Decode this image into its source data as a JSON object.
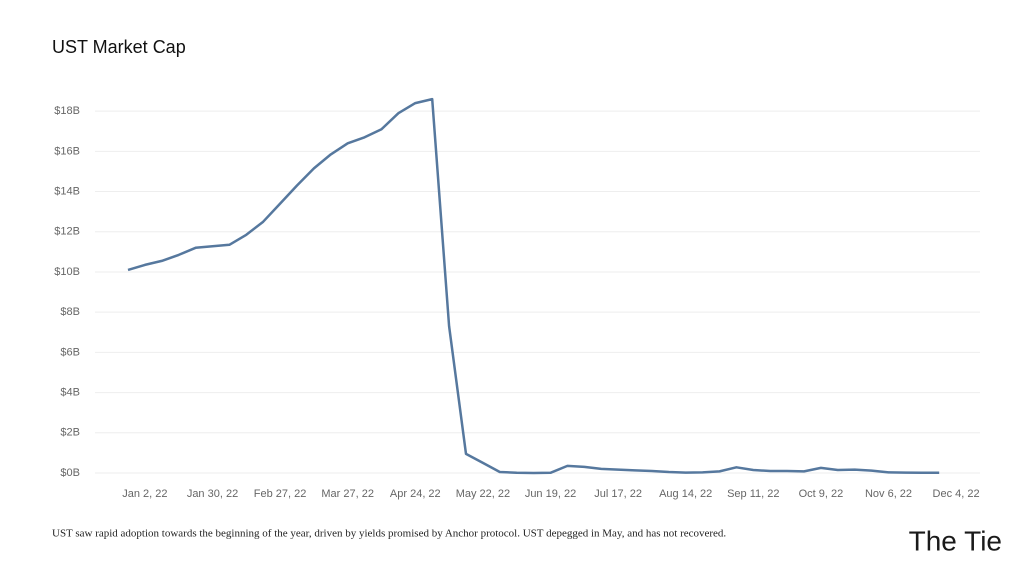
{
  "chart_data": {
    "type": "line",
    "title": "UST Market Cap",
    "caption": "UST saw rapid adoption towards the beginning of the year, driven by yields promised by Anchor protocol. UST depegged in May, and has not recovered.",
    "brand": "The Tie",
    "categories": [
      null,
      "Jan 2, 22",
      null,
      null,
      null,
      "Jan 30, 22",
      null,
      null,
      null,
      "Feb 27, 22",
      null,
      null,
      null,
      "Mar 27, 22",
      null,
      null,
      null,
      "Apr 24, 22",
      null,
      null,
      null,
      "May 22, 22",
      null,
      null,
      null,
      "Jun 19, 22",
      null,
      null,
      null,
      "Jul 17, 22",
      null,
      null,
      null,
      "Aug 14, 22",
      null,
      null,
      null,
      "Sep 11, 22",
      null,
      null,
      null,
      "Oct 9, 22",
      null,
      null,
      null,
      "Nov 6, 22",
      null,
      null,
      null,
      "Dec 4, 22"
    ],
    "series": [
      {
        "name": "UST Market Cap",
        "color": "#56789e",
        "values": [
          10.1,
          10.35,
          10.55,
          10.85,
          11.2,
          11.28,
          11.35,
          11.85,
          12.5,
          13.4,
          14.3,
          15.15,
          15.85,
          16.4,
          16.7,
          17.1,
          17.9,
          18.4,
          18.6,
          7.3,
          0.95,
          0.5,
          0.05,
          0.01,
          0.0,
          0.01,
          0.35,
          0.3,
          0.2,
          0.17,
          0.13,
          0.1,
          0.05,
          0.02,
          0.03,
          0.08,
          0.28,
          0.15,
          0.1,
          0.1,
          0.08,
          0.25,
          0.15,
          0.17,
          0.12,
          0.03,
          0.02,
          0.01,
          0.01,
          null
        ]
      }
    ],
    "ylim": [
      -0.3,
      19.5
    ],
    "yticks": [
      {
        "value": 0,
        "label": "$0B"
      },
      {
        "value": 2,
        "label": "$2B"
      },
      {
        "value": 4,
        "label": "$4B"
      },
      {
        "value": 6,
        "label": "$6B"
      },
      {
        "value": 8,
        "label": "$8B"
      },
      {
        "value": 10,
        "label": "$10B"
      },
      {
        "value": 12,
        "label": "$12B"
      },
      {
        "value": 14,
        "label": "$14B"
      },
      {
        "value": 16,
        "label": "$16B"
      },
      {
        "value": 18,
        "label": "$18B"
      }
    ],
    "grid": true
  }
}
